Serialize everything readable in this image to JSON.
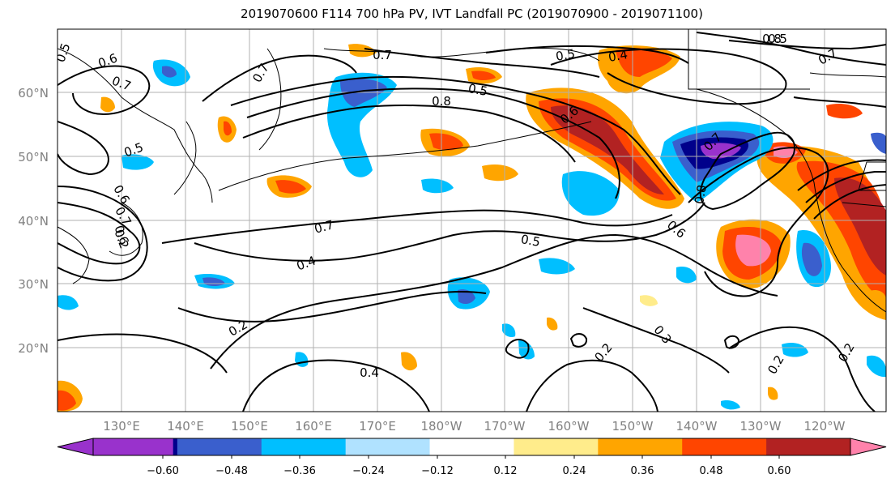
{
  "title": "2019070600 F114 700 hPa PV, IVT Landfall PC (2019070900 - 2019071100)",
  "lat_labels": [
    "60°N",
    "50°N",
    "40°N",
    "30°N",
    "20°N"
  ],
  "lon_labels": [
    "130°E",
    "140°E",
    "150°E",
    "160°E",
    "170°E",
    "180°W",
    "170°W",
    "160°W",
    "150°W",
    "140°W",
    "130°W",
    "120°W"
  ],
  "colorbar": {
    "colors": [
      "#9932cc",
      "#00008b",
      "#3a5fcd",
      "#00bfff",
      "#b0e2ff",
      "#ffffff",
      "#ffec8b",
      "#ffa500",
      "#ff4500",
      "#b22222",
      "#ff82ab"
    ],
    "tick_labels": [
      "−0.60",
      "−0.48",
      "−0.36",
      "−0.24",
      "−0.12",
      "0.12",
      "0.24",
      "0.36",
      "0.48",
      "0.60"
    ]
  },
  "contour_labels": [
    "0.5",
    "0.6",
    "0.7",
    "0.7",
    "0.5",
    "0.6",
    "0.7",
    "0.6",
    "0.7",
    "0.5",
    "0.5",
    "0.8",
    "0.6",
    "0.5",
    "0.4",
    "0.8",
    "0.7",
    "0.7",
    "0.8",
    "0.7",
    "0.4",
    "0.6",
    "0.5",
    "0.4",
    "0.2",
    "0.2",
    "0.3",
    "0.2",
    "0.2",
    "0.2"
  ]
}
